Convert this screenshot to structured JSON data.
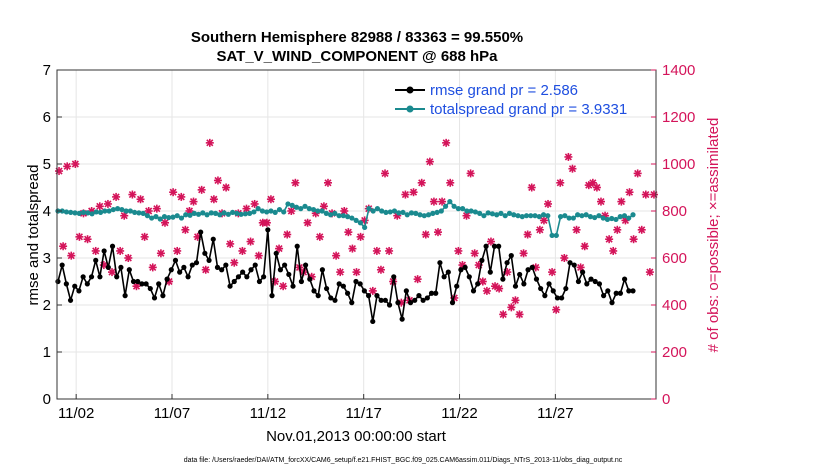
{
  "chart_data": {
    "type": "line",
    "title": "Southern Hemisphere 82988 / 83363 = 99.550%",
    "subtitle": "SAT_V_WIND_COMPONENT @ 688 hPa",
    "xlabel": "Nov.01,2013 00:00:00 start",
    "ylabel_left": "rmse and totalspread",
    "ylabel_right": "# of obs: o=possible; ×=assimilated",
    "xlim": [
      0,
      31.25
    ],
    "ylim_left": [
      0,
      7
    ],
    "ylim_right": [
      0,
      1400
    ],
    "x_ticks": [
      1,
      6,
      11,
      16,
      21,
      26
    ],
    "x_tick_labels": [
      "11/02",
      "11/07",
      "11/12",
      "11/17",
      "11/22",
      "11/27"
    ],
    "y_ticks_left": [
      "0",
      "1",
      "2",
      "3",
      "4",
      "5",
      "6",
      "7"
    ],
    "y_ticks_right": [
      "0",
      "200",
      "400",
      "600",
      "800",
      "1000",
      "1200",
      "1400"
    ],
    "colors": {
      "rmse": "#000000",
      "spread": "#1a8a8f",
      "obs": "#d4145a",
      "right_axis": "#d4145a",
      "legend_text": "#1f4fe0"
    },
    "series": [
      {
        "name": "rmse grand pr = 2.586",
        "axis": "left",
        "values": [
          2.5,
          2.85,
          2.45,
          2.1,
          2.4,
          2.3,
          2.6,
          2.45,
          2.6,
          2.95,
          2.6,
          3.15,
          2.8,
          3.25,
          2.6,
          2.8,
          2.2,
          2.75,
          2.5,
          2.5,
          2.45,
          2.45,
          2.35,
          2.15,
          2.45,
          2.2,
          2.55,
          2.75,
          2.95,
          2.7,
          2.8,
          2.6,
          2.85,
          2.9,
          3.55,
          3.1,
          2.95,
          3.4,
          2.8,
          2.75,
          2.85,
          2.4,
          2.5,
          2.6,
          2.7,
          2.6,
          2.75,
          2.85,
          2.5,
          2.6,
          3.6,
          2.2,
          3.1,
          2.75,
          2.85,
          2.65,
          2.4,
          3.25,
          2.5,
          2.85,
          2.55,
          2.3,
          2.2,
          2.75,
          2.35,
          2.15,
          2.1,
          2.45,
          2.4,
          2.25,
          2.05,
          2.5,
          2.45,
          2.3,
          2.2,
          1.65,
          2.2,
          2.1,
          2.1,
          2.0,
          2.6,
          2.05,
          1.7,
          2.3,
          2.05,
          2.1,
          2.2,
          2.1,
          2.15,
          2.25,
          2.25,
          2.9,
          2.6,
          2.7,
          2.05,
          2.4,
          2.75,
          2.8,
          2.6,
          2.3,
          2.45,
          2.95,
          3.25,
          2.7,
          3.25,
          3.25,
          2.55,
          2.9,
          3.05,
          2.4,
          2.65,
          2.45,
          2.75,
          2.8,
          2.55,
          2.35,
          2.2,
          2.45,
          2.3,
          2.15,
          2.15,
          2.35,
          2.9,
          2.85,
          2.5,
          2.7,
          2.45,
          2.55,
          2.5,
          2.45,
          2.2,
          2.3,
          2.05,
          2.25,
          2.25,
          2.55,
          2.3,
          2.3
        ],
        "color": "#000000"
      },
      {
        "name": "totalspread grand pr = 3.9331",
        "axis": "left",
        "values": [
          4.0,
          4.0,
          3.98,
          3.97,
          3.96,
          3.95,
          3.97,
          3.96,
          3.94,
          3.98,
          3.97,
          4.0,
          4.0,
          4.03,
          4.05,
          4.03,
          4.0,
          4.0,
          3.97,
          3.96,
          3.95,
          3.9,
          3.85,
          3.88,
          3.83,
          3.88,
          3.86,
          3.87,
          3.9,
          3.85,
          3.92,
          3.91,
          3.95,
          3.93,
          3.96,
          3.92,
          3.96,
          3.95,
          3.92,
          3.96,
          3.93,
          3.97,
          3.95,
          3.93,
          3.94,
          3.95,
          3.98,
          4.05,
          4.0,
          3.98,
          4.0,
          3.97,
          4.03,
          3.98,
          4.15,
          4.12,
          4.08,
          4.05,
          4.1,
          4.05,
          4.03,
          4.0,
          4.0,
          3.95,
          3.92,
          3.95,
          3.9,
          3.9,
          3.88,
          3.85,
          3.8,
          3.75,
          3.65,
          4.05,
          4.0,
          4.05,
          4.0,
          3.97,
          3.98,
          4.0,
          3.96,
          3.97,
          3.92,
          3.96,
          3.95,
          3.92,
          3.9,
          3.92,
          3.95,
          3.97,
          4.0,
          4.1,
          4.2,
          4.1,
          4.05,
          4.05,
          4.0,
          4.0,
          3.98,
          3.95,
          3.9,
          3.96,
          3.94,
          3.92,
          3.95,
          3.9,
          3.95,
          3.92,
          3.9,
          3.88,
          3.9,
          3.9,
          3.9,
          3.88,
          3.92,
          3.9,
          3.48,
          3.48,
          3.88,
          3.9,
          3.85,
          3.85,
          3.92,
          3.9,
          3.92,
          3.88,
          3.86,
          3.9,
          3.85,
          3.82,
          3.84,
          3.82,
          3.88,
          3.9,
          3.85,
          3.92
        ],
        "color": "#1a8a8f"
      },
      {
        "name": "# of obs (assimilated)",
        "axis": "right",
        "values": [
          970,
          650,
          990,
          610,
          1000,
          690,
          790,
          680,
          800,
          630,
          820,
          570,
          830,
          540,
          860,
          630,
          780,
          600,
          870,
          480,
          850,
          690,
          800,
          560,
          810,
          620,
          750,
          500,
          880,
          630,
          860,
          720,
          800,
          840,
          690,
          890,
          550,
          1090,
          850,
          930,
          790,
          900,
          660,
          580,
          790,
          630,
          810,
          670,
          830,
          610,
          750,
          750,
          850,
          500,
          640,
          480,
          700,
          800,
          920,
          560,
          540,
          750,
          520,
          790,
          690,
          820,
          920,
          790,
          610,
          540,
          800,
          710,
          640,
          540,
          690,
          760,
          810,
          460,
          630,
          550,
          960,
          630,
          500,
          780,
          410,
          870,
          420,
          880,
          510,
          920,
          700,
          1010,
          840,
          710,
          840,
          1090,
          920,
          430,
          630,
          570,
          780,
          960,
          620,
          570,
          500,
          460,
          670,
          480,
          470,
          360,
          540,
          390,
          420,
          360,
          620,
          700,
          900,
          560,
          720,
          760,
          830,
          540,
          380,
          920,
          600,
          1030,
          980,
          720,
          560,
          650,
          910,
          920,
          900,
          840,
          780,
          680,
          630,
          720,
          840,
          760,
          880,
          680,
          960,
          720,
          870,
          540,
          870
        ],
        "color": "#d4145a"
      }
    ]
  },
  "footer": "data file: /Users/raeder/DAI/ATM_forcXX/CAM6_setup/f.e21.FHIST_BGC.f09_025.CAM6assim.011/Diags_NTrS_2013-11/obs_diag_output.nc"
}
